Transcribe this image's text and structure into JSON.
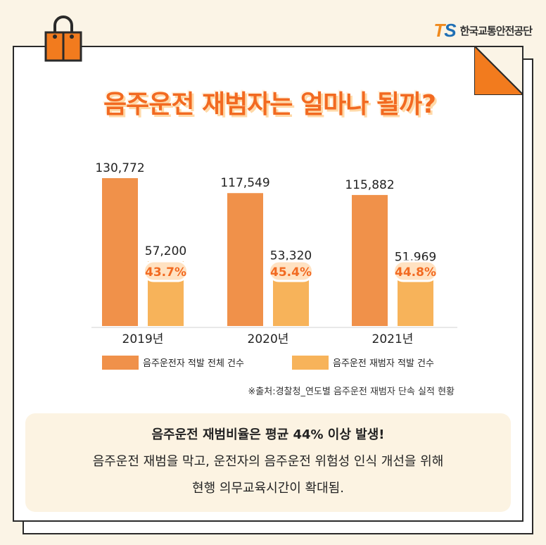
{
  "brand": {
    "mark_t": "T",
    "mark_s": "S",
    "name": "한국교통안전공단"
  },
  "title": "음주운전 재범자는 얼마나 될까?",
  "colors": {
    "total": "#f0914a",
    "repeat": "#f7b35a",
    "badge_text": "#f26a21",
    "badge_fill": "#ffe2c2"
  },
  "chart_data": {
    "type": "bar",
    "categories": [
      "2019년",
      "2020년",
      "2021년"
    ],
    "series": [
      {
        "name": "음주운전자 적발 전체 건수",
        "values": [
          130772,
          117549,
          115882
        ],
        "labels": [
          "130,772",
          "117,549",
          "115,882"
        ]
      },
      {
        "name": "음주운전 재범자 적발 건수",
        "values": [
          57200,
          53320,
          51969
        ],
        "labels": [
          "57,200",
          "53,320",
          "51,969"
        ]
      }
    ],
    "ratios": [
      "43.7%",
      "45.4%",
      "44.8%"
    ],
    "ylim": [
      0,
      140000
    ],
    "legend_position": "bottom"
  },
  "source_note": "※출처:경찰청_연도별 음주운전 재범자 단속 실적 현황",
  "summary": {
    "line1": "음주운전 재범비율은 평균 44% 이상 발생!",
    "line2": "음주운전 재범을 막고, 운전자의 음주운전 위험성 인식 개선을 위해",
    "line3": "현행 의무교육시간이 확대됨."
  }
}
